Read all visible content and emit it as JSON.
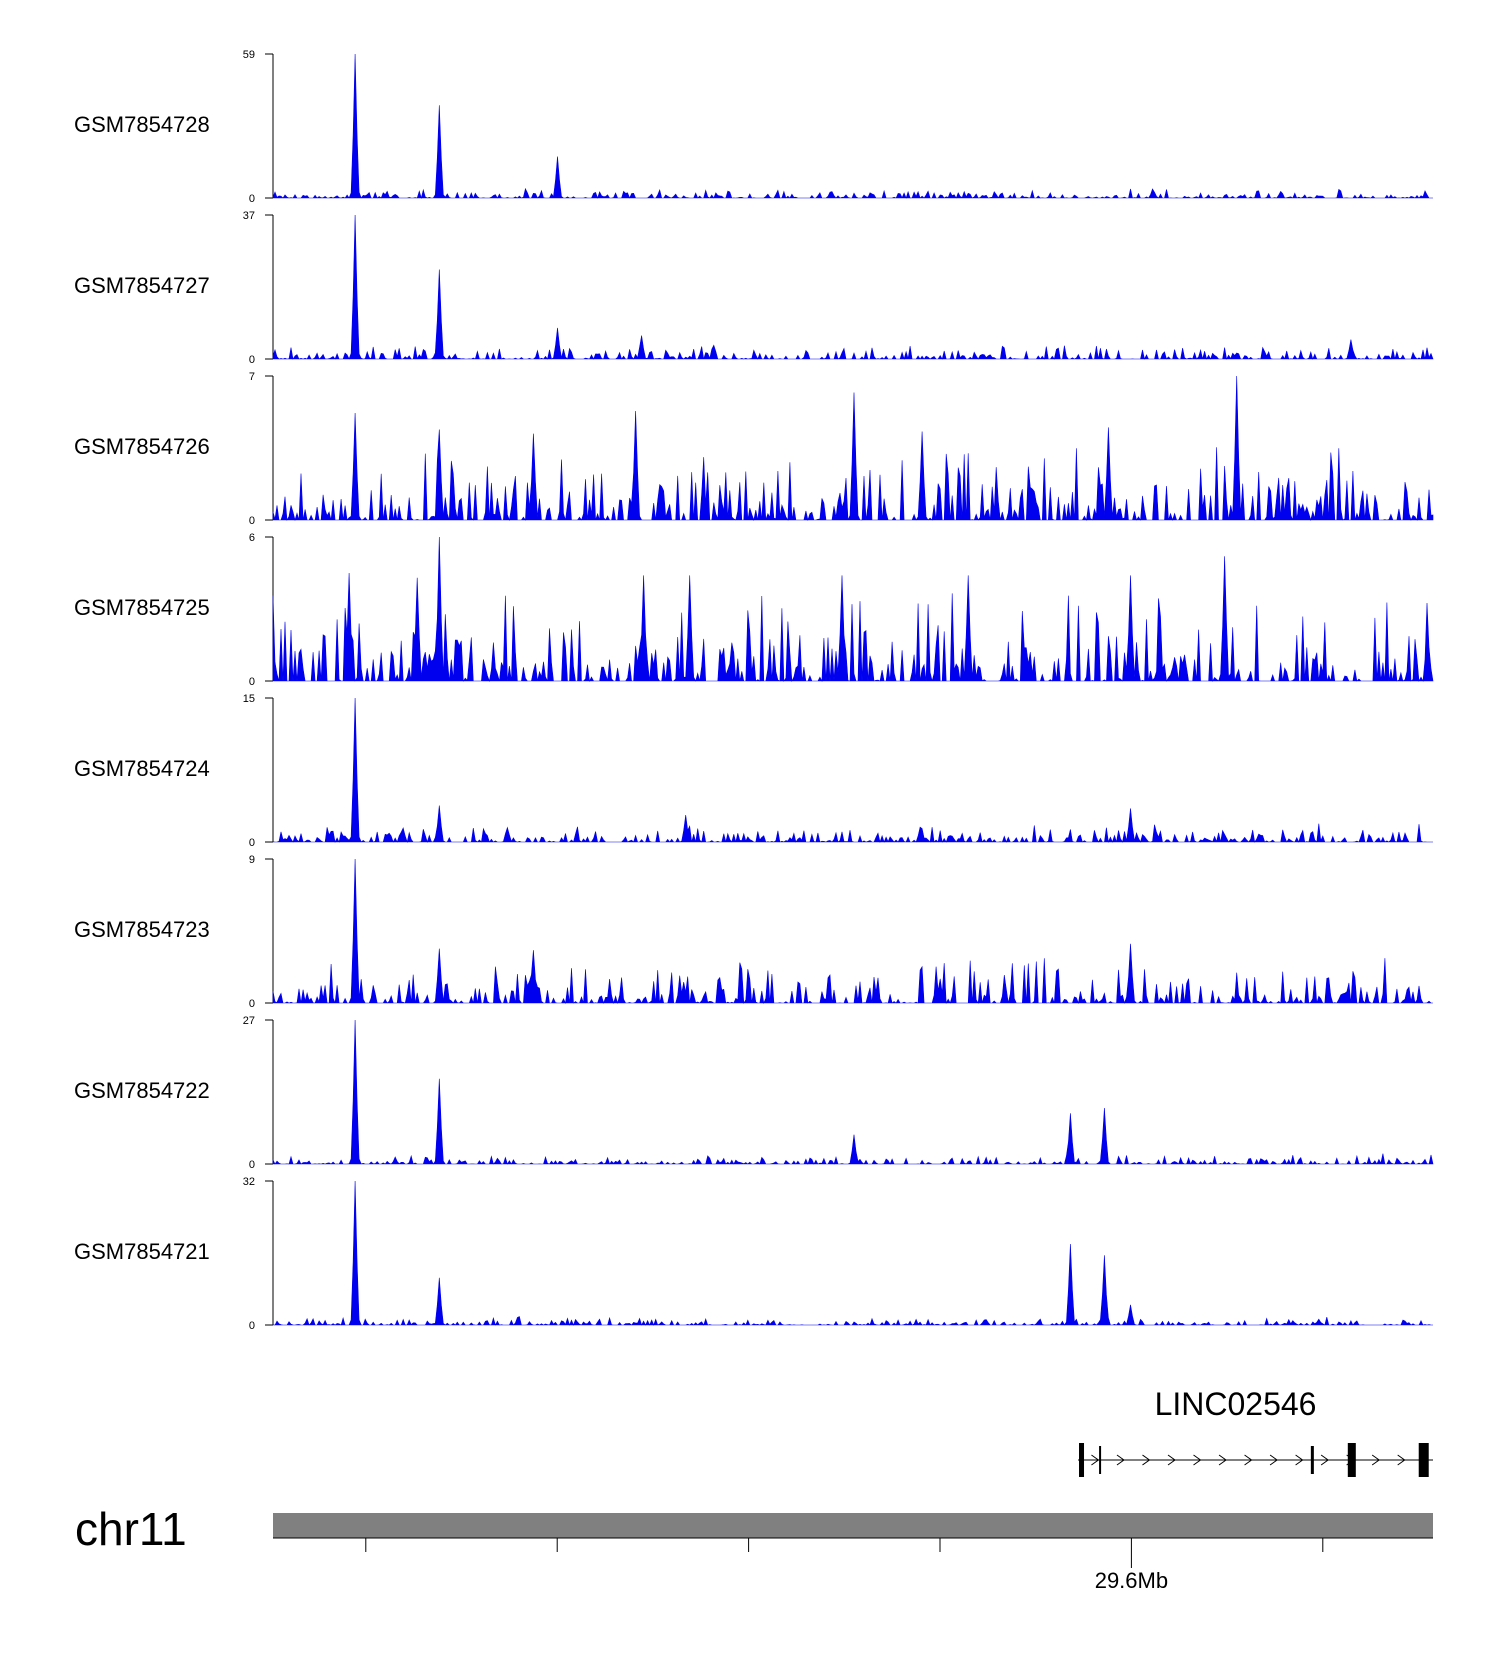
{
  "chart_data": {
    "type": "area",
    "title": "",
    "xlabel": "",
    "track_color": "#0000ee",
    "series": [
      {
        "name": "GSM7854728",
        "ymax": 59,
        "ymin": 0,
        "peaks": [
          [
            0.07,
            59
          ],
          [
            0.143,
            38
          ],
          [
            0.245,
            17
          ]
        ],
        "noise": 4,
        "seed": 11
      },
      {
        "name": "GSM7854727",
        "ymax": 37,
        "ymin": 0,
        "peaks": [
          [
            0.07,
            37
          ],
          [
            0.143,
            23
          ],
          [
            0.245,
            8
          ],
          [
            0.318,
            6
          ],
          [
            0.93,
            5
          ]
        ],
        "noise": 4,
        "seed": 23
      },
      {
        "name": "GSM7854726",
        "ymax": 7,
        "ymin": 0,
        "peaks": [
          [
            0.07,
            5.2
          ],
          [
            0.143,
            4.4
          ],
          [
            0.225,
            4.2
          ],
          [
            0.313,
            5.3
          ],
          [
            0.5,
            6.2
          ],
          [
            0.83,
            7
          ],
          [
            0.56,
            4.3
          ],
          [
            0.72,
            4.5
          ]
        ],
        "noise": 4,
        "seed": 37
      },
      {
        "name": "GSM7854725",
        "ymax": 6,
        "ymin": 0,
        "peaks": [
          [
            0.065,
            4.5
          ],
          [
            0.125,
            4.3
          ],
          [
            0.143,
            6
          ],
          [
            0.32,
            4.4
          ],
          [
            0.36,
            4.4
          ],
          [
            0.49,
            4.4
          ],
          [
            0.6,
            4.4
          ],
          [
            0.74,
            4.4
          ],
          [
            0.82,
            5.2
          ]
        ],
        "noise": 4,
        "seed": 41
      },
      {
        "name": "GSM7854724",
        "ymax": 15,
        "ymin": 0,
        "peaks": [
          [
            0.07,
            15
          ],
          [
            0.143,
            3.8
          ],
          [
            0.355,
            2.8
          ],
          [
            0.74,
            3.5
          ]
        ],
        "noise": 2,
        "seed": 53
      },
      {
        "name": "GSM7854723",
        "ymax": 9,
        "ymin": 0,
        "peaks": [
          [
            0.07,
            9
          ],
          [
            0.143,
            3.4
          ],
          [
            0.225,
            3.3
          ],
          [
            0.74,
            3.7
          ]
        ],
        "noise": 3,
        "seed": 67
      },
      {
        "name": "GSM7854722",
        "ymax": 27,
        "ymin": 0,
        "peaks": [
          [
            0.07,
            27
          ],
          [
            0.143,
            16
          ],
          [
            0.5,
            5.5
          ],
          [
            0.688,
            9.5
          ],
          [
            0.717,
            10.5
          ]
        ],
        "noise": 2,
        "seed": 79
      },
      {
        "name": "GSM7854721",
        "ymax": 32,
        "ymin": 0,
        "peaks": [
          [
            0.07,
            32
          ],
          [
            0.143,
            10.5
          ],
          [
            0.688,
            18
          ],
          [
            0.717,
            15.5
          ],
          [
            0.74,
            4.5
          ]
        ],
        "noise": 2,
        "seed": 97
      }
    ],
    "gene": {
      "name": "LINC02546",
      "start": 0.694,
      "end": 1.0,
      "strand": "+",
      "exons": [
        0.697,
        0.713,
        0.896,
        0.93,
        0.992
      ]
    },
    "chromosome": "chr11",
    "ideogram_color": "#808080",
    "axis": {
      "ticks": [
        0.08,
        0.245,
        0.41,
        0.575,
        0.74,
        0.905
      ],
      "labeled_tick": {
        "position": 0.74,
        "label": "29.6Mb"
      }
    }
  }
}
